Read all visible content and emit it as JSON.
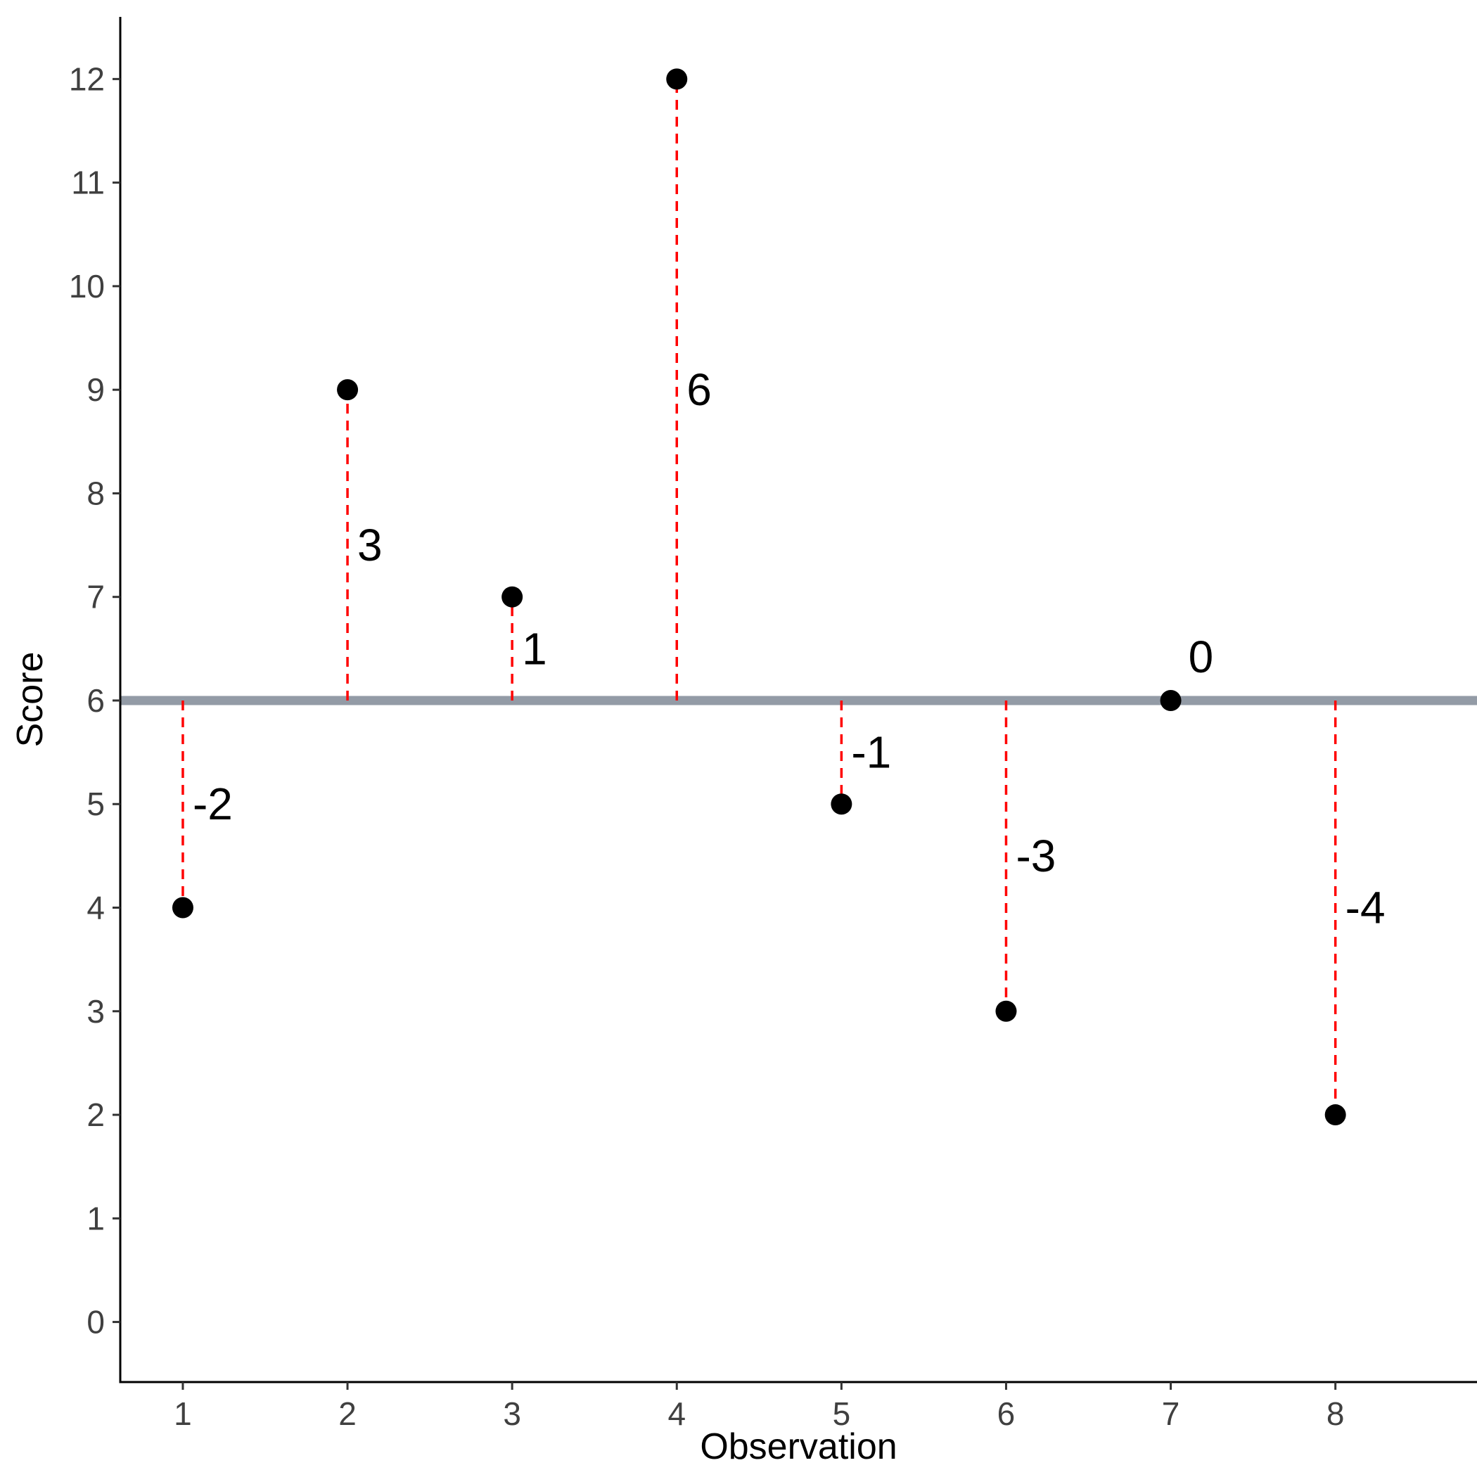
{
  "chart_data": {
    "type": "scatter",
    "title": "",
    "xlabel": "Observation",
    "ylabel": "Score",
    "x_ticks": [
      "1",
      "2",
      "3",
      "4",
      "5",
      "6",
      "7",
      "8"
    ],
    "y_ticks": [
      "0",
      "1",
      "2",
      "3",
      "4",
      "5",
      "6",
      "7",
      "8",
      "9",
      "10",
      "11",
      "12"
    ],
    "xlim": [
      0.62,
      8.86
    ],
    "ylim": [
      -0.58,
      12.6
    ],
    "mean_line": 6,
    "points": [
      {
        "x": 1,
        "y": 4,
        "deviation": "-2"
      },
      {
        "x": 2,
        "y": 9,
        "deviation": "3"
      },
      {
        "x": 3,
        "y": 7,
        "deviation": "1"
      },
      {
        "x": 4,
        "y": 12,
        "deviation": "6"
      },
      {
        "x": 5,
        "y": 5,
        "deviation": "-1"
      },
      {
        "x": 6,
        "y": 3,
        "deviation": "-3"
      },
      {
        "x": 7,
        "y": 6,
        "deviation": "0"
      },
      {
        "x": 8,
        "y": 2,
        "deviation": "-4"
      }
    ],
    "colors": {
      "point": "#000000",
      "mean_line": "#939ba6",
      "deviation_line": "#ff0000",
      "axis": "#000000"
    }
  }
}
